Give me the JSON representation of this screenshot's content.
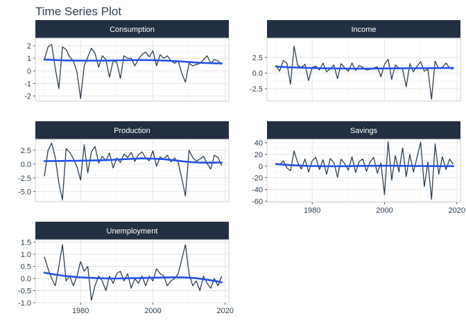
{
  "page": {
    "title": "Time Series Plot"
  },
  "colors": {
    "series": "#2c3e50",
    "trend": "#2251e8",
    "strip": "#233041"
  },
  "chart_data": {
    "type": "line",
    "facet_layout": "wrap, 2 columns",
    "x_axis": {
      "range": [
        1967.5,
        2021
      ],
      "ticks": [
        1980,
        2000,
        2020
      ]
    },
    "grid": true,
    "panels": [
      {
        "name": "Consumption",
        "ylim": [
          -2.4,
          2.6
        ],
        "yticks": [
          -2,
          -1,
          0,
          1,
          2
        ],
        "x": [
          1970,
          1971,
          1972,
          1973,
          1974,
          1975,
          1976,
          1977,
          1978,
          1979,
          1980,
          1981,
          1982,
          1983,
          1984,
          1985,
          1986,
          1987,
          1988,
          1989,
          1990,
          1991,
          1992,
          1993,
          1994,
          1995,
          1996,
          1997,
          1998,
          1999,
          2000,
          2001,
          2002,
          2003,
          2004,
          2005,
          2006,
          2007,
          2008,
          2009,
          2010,
          2011,
          2012,
          2013,
          2014,
          2015,
          2016,
          2017,
          2018,
          2019
        ],
        "values": [
          0.9,
          1.9,
          2.1,
          0.2,
          -1.4,
          1.9,
          1.7,
          1.1,
          0.8,
          -0.1,
          -2.2,
          0.4,
          1.1,
          1.8,
          1.4,
          0.3,
          1.2,
          0.9,
          -0.5,
          0.8,
          0.7,
          -0.6,
          1.2,
          1.0,
          1.0,
          0.4,
          0.9,
          1.3,
          1.5,
          1.1,
          1.6,
          0.4,
          1.3,
          1.0,
          1.2,
          0.8,
          0.6,
          0.8,
          -0.2,
          -0.9,
          0.6,
          0.4,
          0.5,
          0.6,
          0.9,
          1.2,
          0.6,
          0.9,
          0.8,
          0.5
        ],
        "trend": [
          0.9,
          0.86,
          0.83,
          0.82,
          0.81,
          0.81,
          0.82,
          0.84,
          0.85,
          0.86,
          0.85,
          0.82,
          0.78,
          0.72,
          0.66,
          0.62,
          0.6,
          0.6
        ],
        "trend_x": [
          1970,
          1973,
          1976,
          1979,
          1982,
          1985,
          1988,
          1991,
          1994,
          1997,
          2000,
          2003,
          2006,
          2009,
          2012,
          2015,
          2018,
          2019
        ]
      },
      {
        "name": "Income",
        "ylim": [
          -4.5,
          5.6
        ],
        "yticks": [
          -2.5,
          0.0,
          2.5
        ],
        "x": [
          1970,
          1971,
          1972,
          1973,
          1974,
          1975,
          1976,
          1977,
          1978,
          1979,
          1980,
          1981,
          1982,
          1983,
          1984,
          1985,
          1986,
          1987,
          1988,
          1989,
          1990,
          1991,
          1992,
          1993,
          1994,
          1995,
          1996,
          1997,
          1998,
          1999,
          2000,
          2001,
          2002,
          2003,
          2004,
          2005,
          2006,
          2007,
          2008,
          2009,
          2010,
          2011,
          2012,
          2013,
          2014,
          2015,
          2016,
          2017,
          2018,
          2019
        ],
        "values": [
          1.2,
          0.3,
          2.0,
          1.6,
          -1.8,
          4.3,
          1.2,
          0.9,
          1.4,
          -1.2,
          0.9,
          1.1,
          0.5,
          1.6,
          0.2,
          0.7,
          1.3,
          -0.9,
          1.5,
          0.8,
          0.3,
          1.6,
          0.4,
          1.2,
          0.9,
          0.5,
          0.6,
          0.8,
          1.0,
          -0.6,
          1.4,
          2.2,
          -1.0,
          1.3,
          0.8,
          0.6,
          -2.2,
          1.5,
          0.2,
          1.1,
          1.8,
          0.3,
          0.6,
          -4.2,
          1.9,
          0.7,
          0.9,
          1.6,
          0.8,
          0.6
        ],
        "trend": [
          1.05,
          0.95,
          0.88,
          0.82,
          0.78,
          0.75,
          0.73,
          0.72,
          0.71,
          0.72,
          0.74,
          0.75,
          0.76,
          0.77,
          0.78,
          0.8,
          0.82,
          0.83
        ],
        "trend_x": [
          1970,
          1973,
          1976,
          1979,
          1982,
          1985,
          1988,
          1991,
          1994,
          1997,
          2000,
          2003,
          2006,
          2009,
          2012,
          2015,
          2018,
          2019
        ]
      },
      {
        "name": "Production",
        "ylim": [
          -6.8,
          4.5
        ],
        "yticks": [
          -5.0,
          -2.5,
          0.0,
          2.5
        ],
        "x": [
          1970,
          1971,
          1972,
          1973,
          1974,
          1975,
          1976,
          1977,
          1978,
          1979,
          1980,
          1981,
          1982,
          1983,
          1984,
          1985,
          1986,
          1987,
          1988,
          1989,
          1990,
          1991,
          1992,
          1993,
          1994,
          1995,
          1996,
          1997,
          1998,
          1999,
          2000,
          2001,
          2002,
          2003,
          2004,
          2005,
          2006,
          2007,
          2008,
          2009,
          2010,
          2011,
          2012,
          2013,
          2014,
          2015,
          2016,
          2017,
          2018,
          2019
        ],
        "values": [
          -2.2,
          2.5,
          3.8,
          1.2,
          -3.5,
          -6.5,
          2.8,
          2.1,
          1.0,
          -0.5,
          -2.9,
          3.5,
          -1.6,
          2.2,
          3.2,
          0.2,
          1.4,
          0.6,
          2.0,
          -0.7,
          1.1,
          0.3,
          1.8,
          1.2,
          2.1,
          0.5,
          1.7,
          2.2,
          1.1,
          0.6,
          2.4,
          -0.4,
          1.3,
          0.9,
          1.6,
          0.4,
          1.1,
          0.3,
          -2.6,
          -5.8,
          2.5,
          1.2,
          0.5,
          0.9,
          1.4,
          0.1,
          -0.9,
          1.6,
          1.2,
          -0.3
        ],
        "trend": [
          0.55,
          0.56,
          0.58,
          0.6,
          0.63,
          0.68,
          0.75,
          0.85,
          0.95,
          1.02,
          1.0,
          0.88,
          0.68,
          0.45,
          0.3,
          0.25,
          0.28,
          0.3
        ],
        "trend_x": [
          1970,
          1973,
          1976,
          1979,
          1982,
          1985,
          1988,
          1991,
          1994,
          1997,
          2000,
          2003,
          2006,
          2009,
          2012,
          2015,
          2018,
          2019
        ]
      },
      {
        "name": "Savings",
        "ylim": [
          -62,
          46
        ],
        "yticks": [
          -60,
          -40,
          -20,
          0,
          20,
          40
        ],
        "x": [
          1970,
          1971,
          1972,
          1973,
          1974,
          1975,
          1976,
          1977,
          1978,
          1979,
          1980,
          1981,
          1982,
          1983,
          1984,
          1985,
          1986,
          1987,
          1988,
          1989,
          1990,
          1991,
          1992,
          1993,
          1994,
          1995,
          1996,
          1997,
          1998,
          1999,
          2000,
          2001,
          2002,
          2003,
          2004,
          2005,
          2006,
          2007,
          2008,
          2009,
          2010,
          2011,
          2012,
          2013,
          2014,
          2015,
          2016,
          2017,
          2018,
          2019
        ],
        "values": [
          5,
          2,
          9,
          -3,
          -8,
          26,
          6,
          -5,
          12,
          -10,
          9,
          15,
          -6,
          11,
          -14,
          13,
          6,
          -19,
          12,
          4,
          -7,
          16,
          -11,
          8,
          12,
          -9,
          7,
          15,
          -12,
          5,
          -49,
          42,
          -24,
          18,
          -10,
          31,
          -18,
          20,
          -10,
          15,
          41,
          -35,
          7,
          -57,
          38,
          -14,
          16,
          -6,
          12,
          3
        ],
        "trend": [
          3.5,
          2.2,
          1.1,
          0.3,
          -0.1,
          -0.3,
          -0.2,
          0.1,
          0.4,
          0.6,
          0.7,
          0.6,
          0.4,
          0.2,
          0.1,
          0.0,
          -0.1,
          -0.1
        ],
        "trend_x": [
          1970,
          1973,
          1976,
          1979,
          1982,
          1985,
          1988,
          1991,
          1994,
          1997,
          2000,
          2003,
          2006,
          2009,
          2012,
          2015,
          2018,
          2019
        ]
      },
      {
        "name": "Unemployment",
        "ylim": [
          -1.0,
          1.6
        ],
        "yticks": [
          -1.0,
          -0.5,
          0.0,
          0.5,
          1.0,
          1.5
        ],
        "x": [
          1970,
          1971,
          1972,
          1973,
          1974,
          1975,
          1976,
          1977,
          1978,
          1979,
          1980,
          1981,
          1982,
          1983,
          1984,
          1985,
          1986,
          1987,
          1988,
          1989,
          1990,
          1991,
          1992,
          1993,
          1994,
          1995,
          1996,
          1997,
          1998,
          1999,
          2000,
          2001,
          2002,
          2003,
          2004,
          2005,
          2006,
          2007,
          2008,
          2009,
          2010,
          2011,
          2012,
          2013,
          2014,
          2015,
          2016,
          2017,
          2018,
          2019
        ],
        "values": [
          0.9,
          0.4,
          0.0,
          -0.3,
          0.5,
          1.4,
          -0.1,
          0.1,
          -0.3,
          0.1,
          0.7,
          0.3,
          0.5,
          -0.9,
          -0.3,
          0.1,
          -0.1,
          -0.5,
          0.1,
          -0.2,
          0.2,
          0.3,
          -0.1,
          0.2,
          -0.4,
          0.0,
          -0.2,
          0.1,
          -0.3,
          0.1,
          -0.1,
          0.4,
          0.2,
          0.1,
          -0.3,
          -0.1,
          0.0,
          0.2,
          0.8,
          1.4,
          0.2,
          -0.3,
          -0.1,
          -0.5,
          0.1,
          -0.2,
          -0.4,
          0.0,
          -0.3,
          0.1
        ],
        "trend": [
          0.24,
          0.16,
          0.1,
          0.06,
          0.03,
          0.01,
          0.0,
          0.0,
          0.01,
          0.02,
          0.03,
          0.04,
          0.05,
          0.04,
          0.01,
          -0.05,
          -0.12,
          -0.16
        ],
        "trend_x": [
          1970,
          1973,
          1976,
          1979,
          1982,
          1985,
          1988,
          1991,
          1994,
          1997,
          2000,
          2003,
          2006,
          2009,
          2012,
          2015,
          2018,
          2019
        ]
      }
    ]
  }
}
